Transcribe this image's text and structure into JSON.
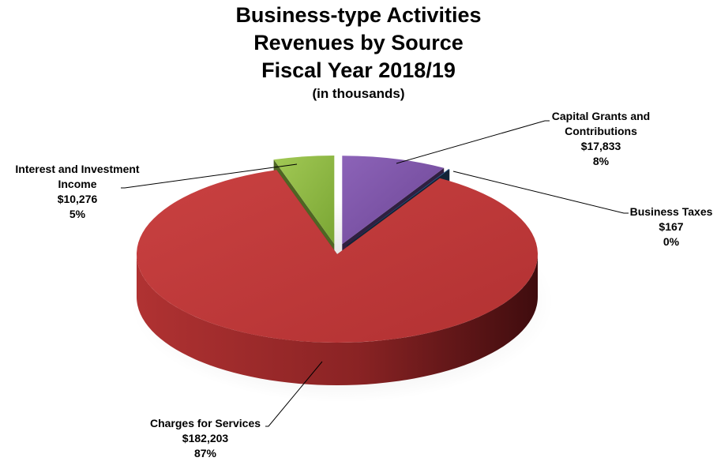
{
  "chart_data": {
    "type": "pie",
    "style": "3d-exploded",
    "title_lines": [
      "Business-type Activities",
      "Revenues by Source",
      "Fiscal Year 2018/19"
    ],
    "subtitle": "(in thousands)",
    "slices": [
      {
        "label_lines": [
          "Capital Grants and",
          "Contributions"
        ],
        "value": 17833,
        "value_text": "$17,833",
        "percent_text": "8%",
        "color": "#7d52a8"
      },
      {
        "label_lines": [
          "Business Taxes"
        ],
        "value": 167,
        "value_text": "$167",
        "percent_text": "0%",
        "color": "#2f5d92"
      },
      {
        "label_lines": [
          "Charges for Services"
        ],
        "value": 182203,
        "value_text": "$182,203",
        "percent_text": "87%",
        "color": "#c0393a"
      },
      {
        "label_lines": [
          "Interest and Investment",
          "Income"
        ],
        "value": 10276,
        "value_text": "$10,276",
        "percent_text": "5%",
        "color": "#8dba3f"
      }
    ]
  }
}
